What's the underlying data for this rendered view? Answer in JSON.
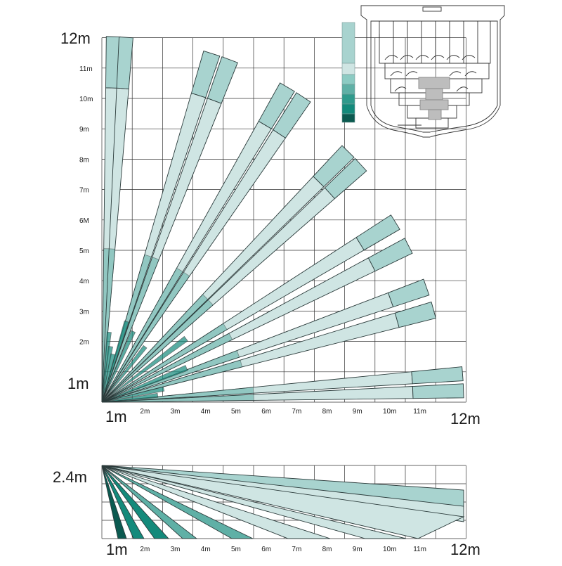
{
  "top_view": {
    "corner_label_y": "12m",
    "origin_y_label": "1m",
    "origin_x_label": "1m",
    "corner_label_x": "12m",
    "y_ticks": [
      "11m",
      "10m",
      "9m",
      "8m",
      "7m",
      "6M",
      "5m",
      "4m",
      "3m",
      "2m"
    ],
    "x_ticks": [
      "2m",
      "3m",
      "4m",
      "5m",
      "6m",
      "7m",
      "8m",
      "9m",
      "10m",
      "11m"
    ]
  },
  "side_view": {
    "height_label": "2.4m",
    "origin_x_label": "1m",
    "corner_label_x": "12m",
    "x_ticks": [
      "2m",
      "3m",
      "4m",
      "5m",
      "6m",
      "7m",
      "8m",
      "9m",
      "10m",
      "11m"
    ]
  },
  "colors": {
    "beam_light": "#cfe5e3",
    "beam_mid": "#a8d3cf",
    "beam_dark": "#5fb0a6",
    "beam_deep": "#138a7b",
    "beam_darkest": "#0b5a50",
    "grid": "#333333"
  },
  "legend_swatches": [
    "#a8d3cf",
    "#cfe5e3",
    "#8ccbc3",
    "#5fb0a6",
    "#2f9a8c",
    "#138a7b",
    "#0b5a50"
  ],
  "sensor_icon": "pir-sensor-lens-diagram-icon"
}
